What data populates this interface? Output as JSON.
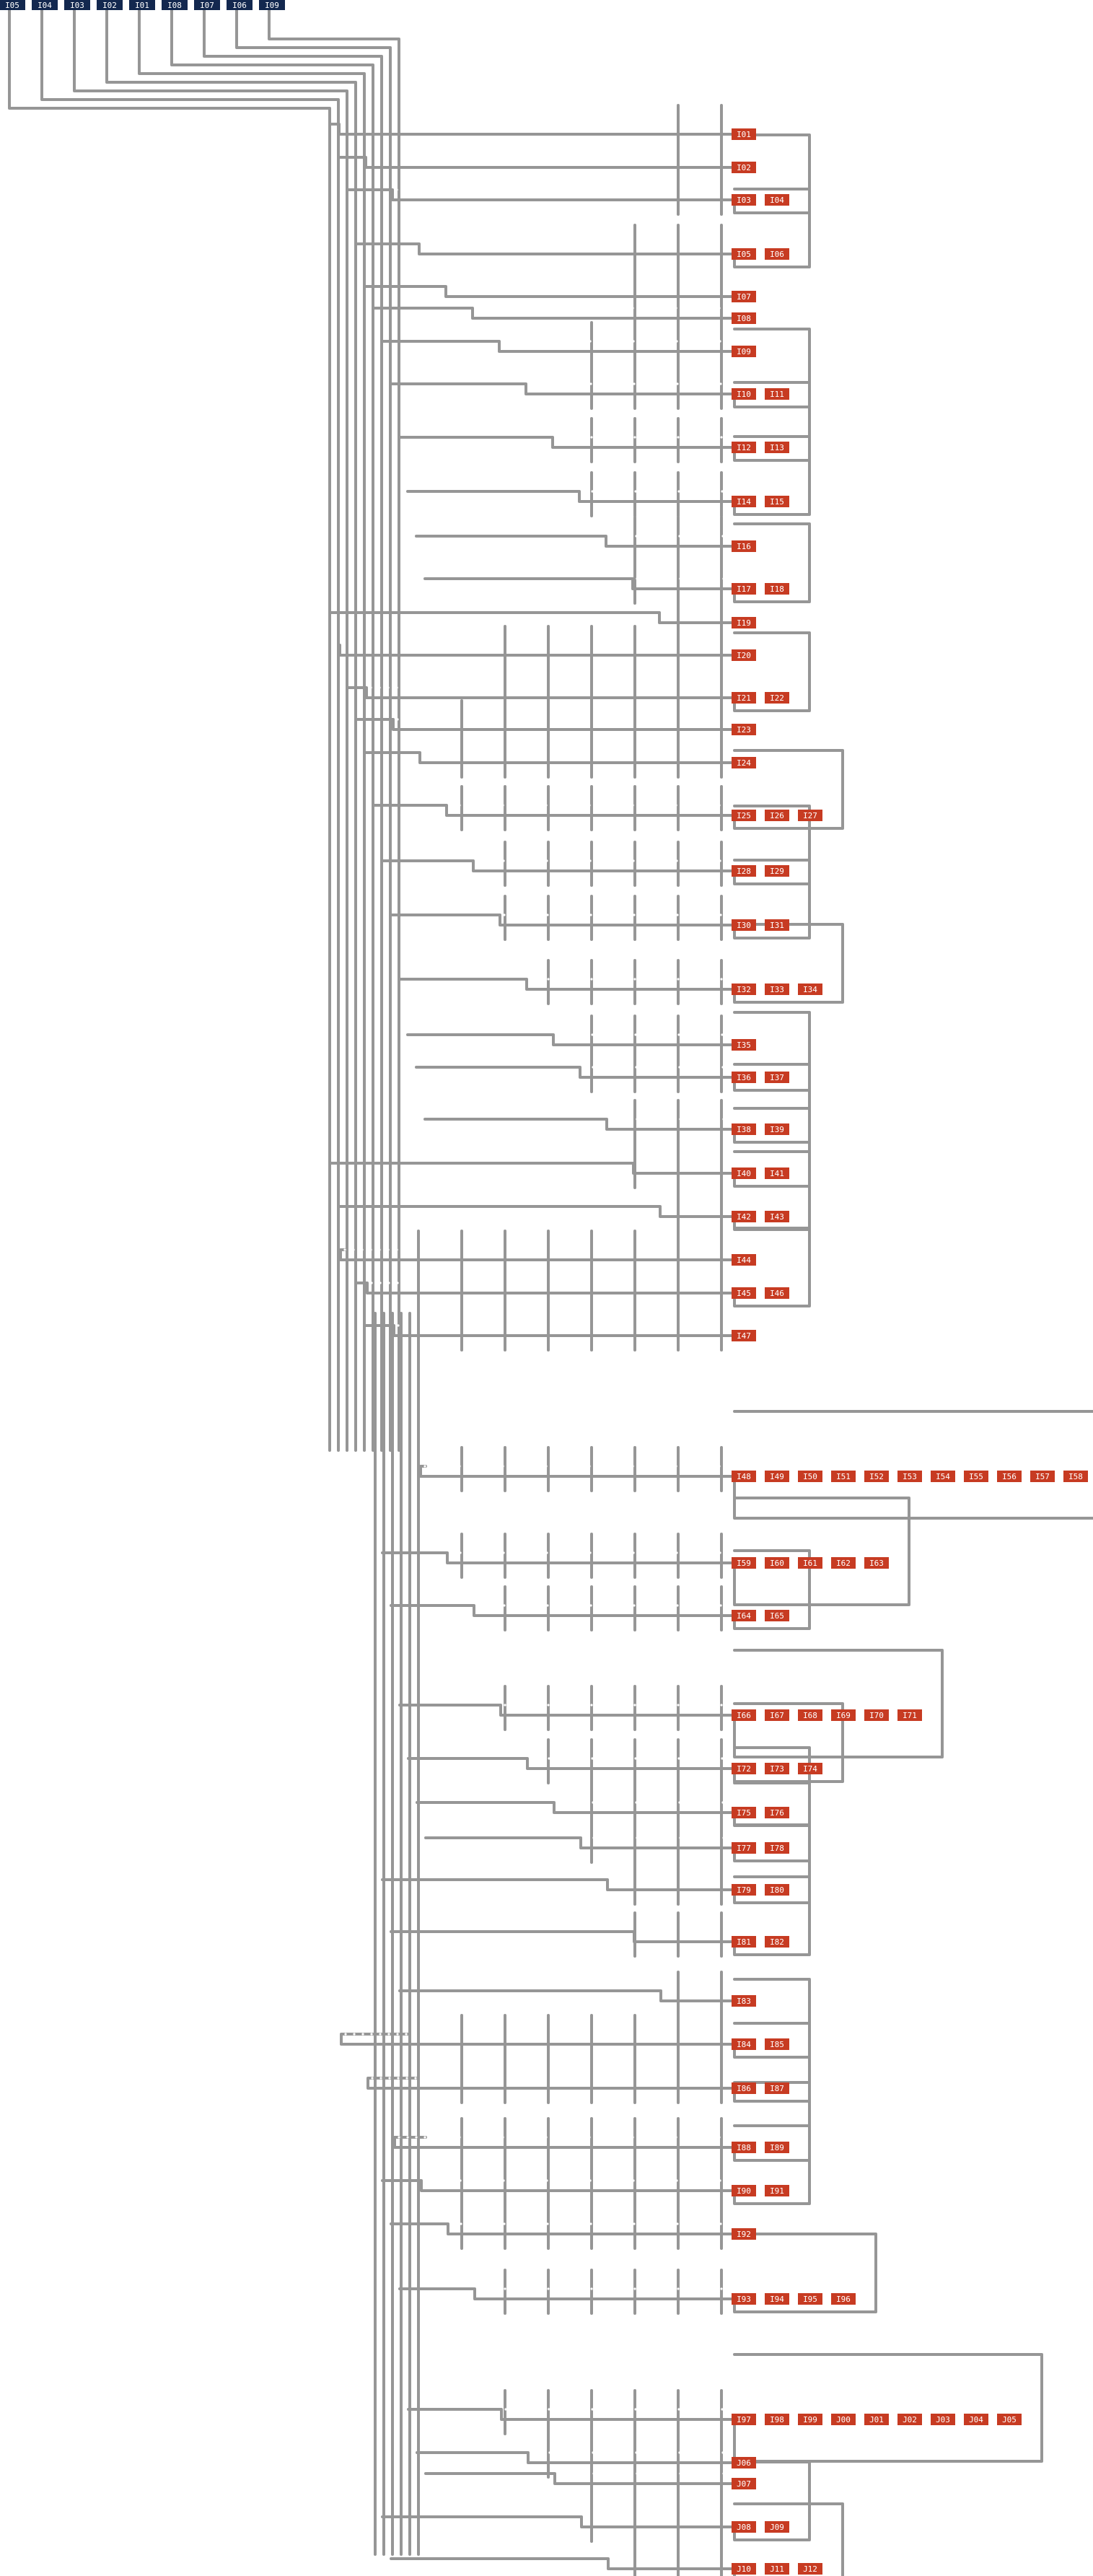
{
  "colors": {
    "wire": "#969696",
    "input_node": "#13284f",
    "output_node": "#c73b22",
    "node_text": "#ffffff",
    "background": "#ffffff"
  },
  "inputs": [
    "I05",
    "I04",
    "I03",
    "I02",
    "I01",
    "I08",
    "I07",
    "I06",
    "I09"
  ],
  "outputs": [
    {
      "row": 0,
      "labels": [
        "I01"
      ]
    },
    {
      "row": 1,
      "labels": [
        "I02"
      ]
    },
    {
      "row": 2,
      "labels": [
        "I03",
        "I04"
      ]
    },
    {
      "row": 3,
      "labels": [
        "I05",
        "I06"
      ]
    },
    {
      "row": 4,
      "labels": [
        "I07"
      ]
    },
    {
      "row": 5,
      "labels": [
        "I08"
      ]
    },
    {
      "row": 6,
      "labels": [
        "I09"
      ]
    },
    {
      "row": 7,
      "labels": [
        "I10",
        "I11"
      ]
    },
    {
      "row": 8,
      "labels": [
        "I12",
        "I13"
      ]
    },
    {
      "row": 9,
      "labels": [
        "I14",
        "I15"
      ]
    },
    {
      "row": 10,
      "labels": [
        "I16"
      ]
    },
    {
      "row": 11,
      "labels": [
        "I17",
        "I18"
      ]
    },
    {
      "row": 12,
      "labels": [
        "I19"
      ]
    },
    {
      "row": 13,
      "labels": [
        "I20"
      ]
    },
    {
      "row": 14,
      "labels": [
        "I21",
        "I22"
      ]
    },
    {
      "row": 15,
      "labels": [
        "I23"
      ]
    },
    {
      "row": 16,
      "labels": [
        "I24"
      ]
    },
    {
      "row": 17,
      "labels": [
        "I25",
        "I26",
        "I27"
      ]
    },
    {
      "row": 18,
      "labels": [
        "I28",
        "I29"
      ]
    },
    {
      "row": 19,
      "labels": [
        "I30",
        "I31"
      ]
    },
    {
      "row": 20,
      "labels": [
        "I32",
        "I33",
        "I34"
      ]
    },
    {
      "row": 21,
      "labels": [
        "I35"
      ]
    },
    {
      "row": 22,
      "labels": [
        "I36",
        "I37"
      ]
    },
    {
      "row": 23,
      "labels": [
        "I38",
        "I39"
      ]
    },
    {
      "row": 24,
      "labels": [
        "I40",
        "I41"
      ]
    },
    {
      "row": 25,
      "labels": [
        "I42",
        "I43"
      ]
    },
    {
      "row": 26,
      "labels": [
        "I44"
      ]
    },
    {
      "row": 27,
      "labels": [
        "I45",
        "I46"
      ]
    },
    {
      "row": 28,
      "labels": [
        "I47"
      ]
    },
    {
      "row": 29,
      "labels": [
        "I48",
        "I49",
        "I50",
        "I51",
        "I52",
        "I53",
        "I54",
        "I55",
        "I56",
        "I57",
        "I58"
      ]
    },
    {
      "row": 30,
      "labels": [
        "I59",
        "I60",
        "I61",
        "I62",
        "I63"
      ]
    },
    {
      "row": 31,
      "labels": [
        "I64",
        "I65"
      ]
    },
    {
      "row": 32,
      "labels": [
        "I66",
        "I67",
        "I68",
        "I69",
        "I70",
        "I71"
      ]
    },
    {
      "row": 33,
      "labels": [
        "I72",
        "I73",
        "I74"
      ]
    },
    {
      "row": 34,
      "labels": [
        "I75",
        "I76"
      ]
    },
    {
      "row": 35,
      "labels": [
        "I77",
        "I78"
      ]
    },
    {
      "row": 36,
      "labels": [
        "I79",
        "I80"
      ]
    },
    {
      "row": 37,
      "labels": [
        "I81",
        "I82"
      ]
    },
    {
      "row": 38,
      "labels": [
        "I83"
      ]
    },
    {
      "row": 39,
      "labels": [
        "I84",
        "I85"
      ]
    },
    {
      "row": 40,
      "labels": [
        "I86",
        "I87"
      ]
    },
    {
      "row": 41,
      "labels": [
        "I88",
        "I89"
      ]
    },
    {
      "row": 42,
      "labels": [
        "I90",
        "I91"
      ]
    },
    {
      "row": 43,
      "labels": [
        "I92"
      ]
    },
    {
      "row": 44,
      "labels": [
        "I93",
        "I94",
        "I95",
        "I96"
      ]
    },
    {
      "row": 45,
      "labels": [
        "I97",
        "I98",
        "I99",
        "J00",
        "J01",
        "J02",
        "J03",
        "J04",
        "J05"
      ]
    },
    {
      "row": 46,
      "labels": [
        "J06"
      ]
    },
    {
      "row": 47,
      "labels": [
        "J07"
      ]
    },
    {
      "row": 48,
      "labels": [
        "J08",
        "J09"
      ]
    },
    {
      "row": 49,
      "labels": [
        "J10",
        "J11",
        "J12"
      ]
    }
  ]
}
